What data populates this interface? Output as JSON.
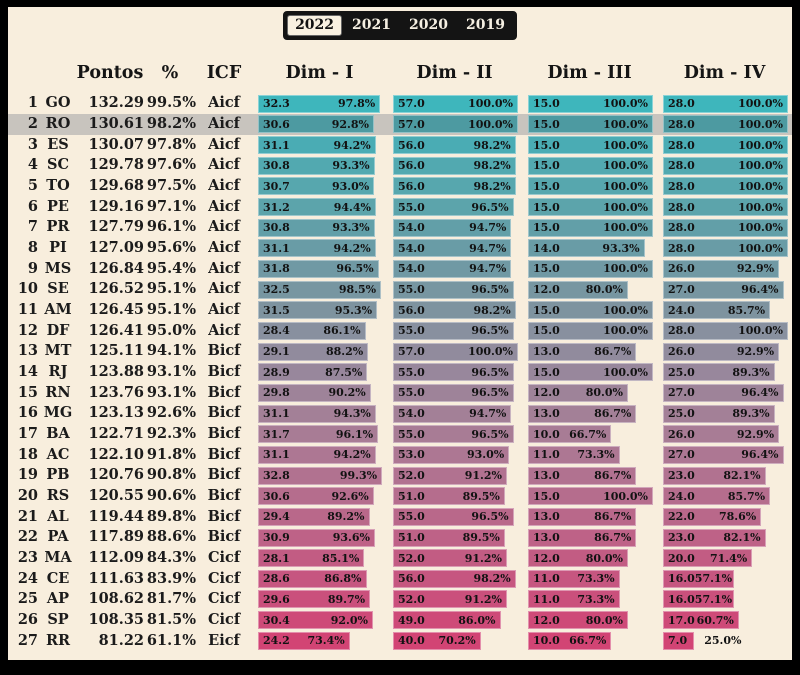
{
  "page": {
    "background": "#f8eedd",
    "frame_color": "#000000",
    "highlight_color": "#c8c4be",
    "highlighted_state": "RO"
  },
  "tabs": [
    {
      "label": "2022",
      "selected": true
    },
    {
      "label": "2021",
      "selected": false
    },
    {
      "label": "2020",
      "selected": false
    },
    {
      "label": "2019",
      "selected": false
    }
  ],
  "header": {
    "pontos": "Pontos",
    "pct": "%",
    "icf": "ICF",
    "dim1": "Dim - I",
    "dim2": "Dim - II",
    "dim3": "Dim - III",
    "dim4": "Dim - IV"
  },
  "chart_data": {
    "type": "table",
    "title": "",
    "columns": [
      "Rank",
      "UF",
      "Pontos",
      "%",
      "ICF",
      "Dim-I valor",
      "Dim-I %",
      "Dim-II valor",
      "Dim-II %",
      "Dim-III valor",
      "Dim-III %",
      "Dim-IV valor",
      "Dim-IV %"
    ],
    "bar_scale": "percent of column maximum (Dim-I max 33, Dim-II max 57, Dim-III max 15, Dim-IV max 28)",
    "rows": [
      {
        "rank": 1,
        "state": "GO",
        "pontos": "132.29",
        "pct": "99.5%",
        "icf": "Aicf",
        "color": "#3eb6bc",
        "highlighted": false,
        "dims": [
          {
            "v": "32.3",
            "p": 97.8
          },
          {
            "v": "57.0",
            "p": 100.0
          },
          {
            "v": "15.0",
            "p": 100.0
          },
          {
            "v": "28.0",
            "p": 100.0
          }
        ]
      },
      {
        "rank": 2,
        "state": "RO",
        "pontos": "130.61",
        "pct": "98.2%",
        "icf": "Aicf",
        "color": "#4d9aa1",
        "highlighted": true,
        "dims": [
          {
            "v": "30.6",
            "p": 92.8
          },
          {
            "v": "57.0",
            "p": 100.0
          },
          {
            "v": "15.0",
            "p": 100.0
          },
          {
            "v": "28.0",
            "p": 100.0
          }
        ]
      },
      {
        "rank": 3,
        "state": "ES",
        "pontos": "130.07",
        "pct": "97.8%",
        "icf": "Aicf",
        "color": "#4aacb4",
        "highlighted": false,
        "dims": [
          {
            "v": "31.1",
            "p": 94.2
          },
          {
            "v": "56.0",
            "p": 98.2
          },
          {
            "v": "15.0",
            "p": 100.0
          },
          {
            "v": "28.0",
            "p": 100.0
          }
        ]
      },
      {
        "rank": 4,
        "state": "SC",
        "pontos": "129.78",
        "pct": "97.6%",
        "icf": "Aicf",
        "color": "#52a9b0",
        "highlighted": false,
        "dims": [
          {
            "v": "30.8",
            "p": 93.3
          },
          {
            "v": "56.0",
            "p": 98.2
          },
          {
            "v": "15.0",
            "p": 100.0
          },
          {
            "v": "28.0",
            "p": 100.0
          }
        ]
      },
      {
        "rank": 5,
        "state": "TO",
        "pontos": "129.68",
        "pct": "97.5%",
        "icf": "Aicf",
        "color": "#57a7ae",
        "highlighted": false,
        "dims": [
          {
            "v": "30.7",
            "p": 93.0
          },
          {
            "v": "56.0",
            "p": 98.2
          },
          {
            "v": "15.0",
            "p": 100.0
          },
          {
            "v": "28.0",
            "p": 100.0
          }
        ]
      },
      {
        "rank": 6,
        "state": "PE",
        "pontos": "129.16",
        "pct": "97.1%",
        "icf": "Aicf",
        "color": "#5ca4ab",
        "highlighted": false,
        "dims": [
          {
            "v": "31.2",
            "p": 94.4
          },
          {
            "v": "55.0",
            "p": 96.5
          },
          {
            "v": "15.0",
            "p": 100.0
          },
          {
            "v": "28.0",
            "p": 100.0
          }
        ]
      },
      {
        "rank": 7,
        "state": "PR",
        "pontos": "127.79",
        "pct": "96.1%",
        "icf": "Aicf",
        "color": "#629fa8",
        "highlighted": false,
        "dims": [
          {
            "v": "30.8",
            "p": 93.3
          },
          {
            "v": "54.0",
            "p": 94.7
          },
          {
            "v": "15.0",
            "p": 100.0
          },
          {
            "v": "28.0",
            "p": 100.0
          }
        ]
      },
      {
        "rank": 8,
        "state": "PI",
        "pontos": "127.09",
        "pct": "95.6%",
        "icf": "Aicf",
        "color": "#699ca6",
        "highlighted": false,
        "dims": [
          {
            "v": "31.1",
            "p": 94.2
          },
          {
            "v": "54.0",
            "p": 94.7
          },
          {
            "v": "14.0",
            "p": 93.3
          },
          {
            "v": "28.0",
            "p": 100.0
          }
        ]
      },
      {
        "rank": 9,
        "state": "MS",
        "pontos": "126.84",
        "pct": "95.4%",
        "icf": "Aicf",
        "color": "#7099a4",
        "highlighted": false,
        "dims": [
          {
            "v": "31.8",
            "p": 96.5
          },
          {
            "v": "54.0",
            "p": 94.7
          },
          {
            "v": "15.0",
            "p": 100.0
          },
          {
            "v": "26.0",
            "p": 92.9
          }
        ]
      },
      {
        "rank": 10,
        "state": "SE",
        "pontos": "126.52",
        "pct": "95.1%",
        "icf": "Aicf",
        "color": "#7796a1",
        "highlighted": false,
        "dims": [
          {
            "v": "32.5",
            "p": 98.5
          },
          {
            "v": "55.0",
            "p": 96.5
          },
          {
            "v": "12.0",
            "p": 80.0
          },
          {
            "v": "27.0",
            "p": 96.4
          }
        ]
      },
      {
        "rank": 11,
        "state": "AM",
        "pontos": "126.45",
        "pct": "95.1%",
        "icf": "Aicf",
        "color": "#7e939f",
        "highlighted": false,
        "dims": [
          {
            "v": "31.5",
            "p": 95.3
          },
          {
            "v": "56.0",
            "p": 98.2
          },
          {
            "v": "15.0",
            "p": 100.0
          },
          {
            "v": "24.0",
            "p": 85.7
          }
        ]
      },
      {
        "rank": 12,
        "state": "DF",
        "pontos": "126.41",
        "pct": "95.0%",
        "icf": "Aicf",
        "color": "#88909f",
        "highlighted": false,
        "dims": [
          {
            "v": "28.4",
            "p": 86.1
          },
          {
            "v": "55.0",
            "p": 96.5
          },
          {
            "v": "15.0",
            "p": 100.0
          },
          {
            "v": "28.0",
            "p": 100.0
          }
        ]
      },
      {
        "rank": 13,
        "state": "MT",
        "pontos": "125.11",
        "pct": "94.1%",
        "icf": "Bicf",
        "color": "#918b9d",
        "highlighted": false,
        "dims": [
          {
            "v": "29.1",
            "p": 88.2
          },
          {
            "v": "57.0",
            "p": 100.0
          },
          {
            "v": "13.0",
            "p": 86.7
          },
          {
            "v": "26.0",
            "p": 92.9
          }
        ]
      },
      {
        "rank": 14,
        "state": "RJ",
        "pontos": "123.88",
        "pct": "93.1%",
        "icf": "Bicf",
        "color": "#98879c",
        "highlighted": false,
        "dims": [
          {
            "v": "28.9",
            "p": 87.5
          },
          {
            "v": "55.0",
            "p": 96.5
          },
          {
            "v": "15.0",
            "p": 100.0
          },
          {
            "v": "25.0",
            "p": 89.3
          }
        ]
      },
      {
        "rank": 15,
        "state": "RN",
        "pontos": "123.76",
        "pct": "93.1%",
        "icf": "Bicf",
        "color": "#9e8399",
        "highlighted": false,
        "dims": [
          {
            "v": "29.8",
            "p": 90.2
          },
          {
            "v": "55.0",
            "p": 96.5
          },
          {
            "v": "12.0",
            "p": 80.0
          },
          {
            "v": "27.0",
            "p": 96.4
          }
        ]
      },
      {
        "rank": 16,
        "state": "MG",
        "pontos": "123.13",
        "pct": "92.6%",
        "icf": "Bicf",
        "color": "#a38097",
        "highlighted": false,
        "dims": [
          {
            "v": "31.1",
            "p": 94.3
          },
          {
            "v": "54.0",
            "p": 94.7
          },
          {
            "v": "13.0",
            "p": 86.7
          },
          {
            "v": "25.0",
            "p": 89.3
          }
        ]
      },
      {
        "rank": 17,
        "state": "BA",
        "pontos": "122.71",
        "pct": "92.3%",
        "icf": "Bicf",
        "color": "#a87c95",
        "highlighted": false,
        "dims": [
          {
            "v": "31.7",
            "p": 96.1
          },
          {
            "v": "55.0",
            "p": 96.5
          },
          {
            "v": "10.0",
            "p": 66.7
          },
          {
            "v": "26.0",
            "p": 92.9
          }
        ]
      },
      {
        "rank": 18,
        "state": "AC",
        "pontos": "122.10",
        "pct": "91.8%",
        "icf": "Bicf",
        "color": "#ad7793",
        "highlighted": false,
        "dims": [
          {
            "v": "31.1",
            "p": 94.2
          },
          {
            "v": "53.0",
            "p": 93.0
          },
          {
            "v": "11.0",
            "p": 73.3
          },
          {
            "v": "27.0",
            "p": 96.4
          }
        ]
      },
      {
        "rank": 19,
        "state": "PB",
        "pontos": "120.76",
        "pct": "90.8%",
        "icf": "Bicf",
        "color": "#b17290",
        "highlighted": false,
        "dims": [
          {
            "v": "32.8",
            "p": 99.3
          },
          {
            "v": "52.0",
            "p": 91.2
          },
          {
            "v": "13.0",
            "p": 86.7
          },
          {
            "v": "23.0",
            "p": 82.1
          }
        ]
      },
      {
        "rank": 20,
        "state": "RS",
        "pontos": "120.55",
        "pct": "90.6%",
        "icf": "Bicf",
        "color": "#b56d8d",
        "highlighted": false,
        "dims": [
          {
            "v": "30.6",
            "p": 92.6
          },
          {
            "v": "51.0",
            "p": 89.5
          },
          {
            "v": "15.0",
            "p": 100.0
          },
          {
            "v": "24.0",
            "p": 85.7
          }
        ]
      },
      {
        "rank": 21,
        "state": "AL",
        "pontos": "119.44",
        "pct": "89.8%",
        "icf": "Bicf",
        "color": "#b9688a",
        "highlighted": false,
        "dims": [
          {
            "v": "29.4",
            "p": 89.2
          },
          {
            "v": "55.0",
            "p": 96.5
          },
          {
            "v": "13.0",
            "p": 86.7
          },
          {
            "v": "22.0",
            "p": 78.6
          }
        ]
      },
      {
        "rank": 22,
        "state": "PA",
        "pontos": "117.89",
        "pct": "88.6%",
        "icf": "Bicf",
        "color": "#be6287",
        "highlighted": false,
        "dims": [
          {
            "v": "30.9",
            "p": 93.6
          },
          {
            "v": "51.0",
            "p": 89.5
          },
          {
            "v": "13.0",
            "p": 86.7
          },
          {
            "v": "23.0",
            "p": 82.1
          }
        ]
      },
      {
        "rank": 23,
        "state": "MA",
        "pontos": "112.09",
        "pct": "84.3%",
        "icf": "Cicf",
        "color": "#c25c83",
        "highlighted": false,
        "dims": [
          {
            "v": "28.1",
            "p": 85.1
          },
          {
            "v": "52.0",
            "p": 91.2
          },
          {
            "v": "12.0",
            "p": 80.0
          },
          {
            "v": "20.0",
            "p": 71.4
          }
        ]
      },
      {
        "rank": 24,
        "state": "CE",
        "pontos": "111.63",
        "pct": "83.9%",
        "icf": "Cicf",
        "color": "#c65680",
        "highlighted": false,
        "dims": [
          {
            "v": "28.6",
            "p": 86.8
          },
          {
            "v": "56.0",
            "p": 98.2
          },
          {
            "v": "11.0",
            "p": 73.3
          },
          {
            "v": "16.0",
            "p": 57.1
          }
        ]
      },
      {
        "rank": 25,
        "state": "AP",
        "pontos": "108.62",
        "pct": "81.7%",
        "icf": "Cicf",
        "color": "#ca507c",
        "highlighted": false,
        "dims": [
          {
            "v": "29.6",
            "p": 89.7
          },
          {
            "v": "52.0",
            "p": 91.2
          },
          {
            "v": "11.0",
            "p": 73.3
          },
          {
            "v": "16.0",
            "p": 57.1
          }
        ]
      },
      {
        "rank": 26,
        "state": "SP",
        "pontos": "108.35",
        "pct": "81.5%",
        "icf": "Cicf",
        "color": "#ce4a78",
        "highlighted": false,
        "dims": [
          {
            "v": "30.4",
            "p": 92.0
          },
          {
            "v": "49.0",
            "p": 86.0
          },
          {
            "v": "12.0",
            "p": 80.0
          },
          {
            "v": "17.0",
            "p": 60.7
          }
        ]
      },
      {
        "rank": 27,
        "state": "RR",
        "pontos": "81.22",
        "pct": "61.1%",
        "icf": "Eicf",
        "color": "#d24474",
        "highlighted": false,
        "dims": [
          {
            "v": "24.2",
            "p": 73.4
          },
          {
            "v": "40.0",
            "p": 70.2
          },
          {
            "v": "10.0",
            "p": 66.7
          },
          {
            "v": "7.0",
            "p": 25.0
          }
        ]
      }
    ]
  }
}
